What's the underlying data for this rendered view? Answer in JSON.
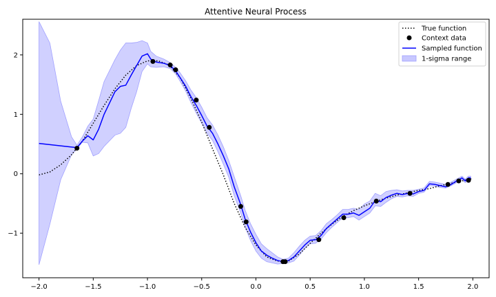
{
  "chart_data": {
    "type": "line",
    "title": "Attentive Neural Process",
    "xlim": [
      -2.15,
      2.15
    ],
    "ylim": [
      -1.75,
      2.6
    ],
    "xticks": [
      -2.0,
      -1.5,
      -1.0,
      -0.5,
      0.0,
      0.5,
      1.0,
      1.5,
      2.0
    ],
    "xtick_labels": [
      "−2.0",
      "−1.5",
      "−1.0",
      "−0.5",
      "0.0",
      "0.5",
      "1.0",
      "1.5",
      "2.0"
    ],
    "yticks": [
      -1,
      0,
      1,
      2
    ],
    "ytick_labels": [
      "−1",
      "0",
      "1",
      "2"
    ],
    "legend": {
      "placement": "top-right",
      "entries": [
        "True function",
        "Context data",
        "Sampled function",
        "1-sigma range"
      ]
    },
    "colors": {
      "true_function": "#000000",
      "context": "#000000",
      "sampled": "#0000ff",
      "band": "#c8c8ff",
      "band_edge": "#a0a0ff"
    },
    "true_function": {
      "x": [
        -2.0,
        -1.9,
        -1.8,
        -1.7,
        -1.6,
        -1.5,
        -1.4,
        -1.3,
        -1.2,
        -1.1,
        -1.0,
        -0.9,
        -0.8,
        -0.7,
        -0.6,
        -0.5,
        -0.4,
        -0.3,
        -0.2,
        -0.1,
        0.0,
        0.1,
        0.2,
        0.3,
        0.4,
        0.5,
        0.6,
        0.7,
        0.8,
        0.9,
        1.0,
        1.1,
        1.2,
        1.3,
        1.4,
        1.5,
        1.6,
        1.7,
        1.8,
        1.9,
        2.0
      ],
      "y": [
        -0.02,
        0.03,
        0.15,
        0.32,
        0.55,
        0.85,
        1.15,
        1.43,
        1.66,
        1.82,
        1.9,
        1.9,
        1.83,
        1.62,
        1.27,
        0.87,
        0.42,
        -0.02,
        -0.5,
        -0.9,
        -1.2,
        -1.4,
        -1.47,
        -1.47,
        -1.35,
        -1.17,
        -1.0,
        -0.85,
        -0.72,
        -0.62,
        -0.54,
        -0.47,
        -0.41,
        -0.36,
        -0.32,
        -0.28,
        -0.25,
        -0.2,
        -0.16,
        -0.12,
        -0.08
      ]
    },
    "context_points": {
      "x": [
        -1.65,
        -0.95,
        -0.79,
        -0.74,
        -0.55,
        -0.43,
        -0.14,
        -0.09,
        0.25,
        0.27,
        0.58,
        0.81,
        1.11,
        1.42,
        1.77,
        1.87,
        1.96
      ],
      "y": [
        0.43,
        1.89,
        1.83,
        1.75,
        1.24,
        0.78,
        -0.55,
        -0.81,
        -1.48,
        -1.48,
        -1.11,
        -0.74,
        -0.46,
        -0.33,
        -0.18,
        -0.12,
        -0.11
      ]
    },
    "sampled_function": {
      "x": [
        -2.0,
        -1.9,
        -1.8,
        -1.7,
        -1.65,
        -1.6,
        -1.55,
        -1.5,
        -1.45,
        -1.4,
        -1.3,
        -1.25,
        -1.2,
        -1.15,
        -1.1,
        -1.05,
        -1.0,
        -0.97,
        -0.92,
        -0.85,
        -0.79,
        -0.74,
        -0.7,
        -0.65,
        -0.6,
        -0.55,
        -0.5,
        -0.45,
        -0.4,
        -0.35,
        -0.3,
        -0.25,
        -0.2,
        -0.14,
        -0.1,
        -0.05,
        0.0,
        0.05,
        0.1,
        0.15,
        0.2,
        0.25,
        0.3,
        0.35,
        0.4,
        0.45,
        0.5,
        0.55,
        0.6,
        0.65,
        0.7,
        0.75,
        0.8,
        0.85,
        0.9,
        0.95,
        1.0,
        1.05,
        1.1,
        1.15,
        1.2,
        1.25,
        1.3,
        1.35,
        1.4,
        1.45,
        1.5,
        1.55,
        1.6,
        1.65,
        1.7,
        1.75,
        1.8,
        1.85,
        1.9,
        1.93,
        1.96,
        1.98
      ],
      "y": [
        0.51,
        0.49,
        0.47,
        0.45,
        0.44,
        0.55,
        0.64,
        0.57,
        0.75,
        1.0,
        1.38,
        1.47,
        1.49,
        1.66,
        1.82,
        1.98,
        2.02,
        1.93,
        1.88,
        1.86,
        1.82,
        1.73,
        1.62,
        1.48,
        1.3,
        1.15,
        0.98,
        0.8,
        0.68,
        0.5,
        0.3,
        0.08,
        -0.22,
        -0.52,
        -0.76,
        -0.98,
        -1.16,
        -1.3,
        -1.37,
        -1.42,
        -1.46,
        -1.48,
        -1.46,
        -1.4,
        -1.3,
        -1.2,
        -1.12,
        -1.11,
        -1.04,
        -0.92,
        -0.84,
        -0.76,
        -0.68,
        -0.68,
        -0.66,
        -0.7,
        -0.64,
        -0.58,
        -0.45,
        -0.47,
        -0.4,
        -0.36,
        -0.33,
        -0.35,
        -0.33,
        -0.34,
        -0.3,
        -0.28,
        -0.17,
        -0.18,
        -0.2,
        -0.22,
        -0.18,
        -0.12,
        -0.07,
        -0.12,
        -0.07,
        -0.07
      ]
    },
    "band_lower": [
      -1.53,
      -0.85,
      -0.1,
      0.32,
      0.42,
      0.53,
      0.52,
      0.3,
      0.34,
      0.46,
      0.65,
      0.68,
      0.78,
      1.1,
      1.38,
      1.72,
      1.85,
      1.8,
      1.79,
      1.8,
      1.77,
      1.68,
      1.56,
      1.4,
      1.2,
      1.02,
      0.85,
      0.68,
      0.56,
      0.37,
      0.16,
      -0.06,
      -0.37,
      -0.66,
      -0.9,
      -1.12,
      -1.3,
      -1.42,
      -1.48,
      -1.5,
      -1.52,
      -1.51,
      -1.5,
      -1.47,
      -1.37,
      -1.26,
      -1.18,
      -1.17,
      -1.1,
      -0.99,
      -0.9,
      -0.82,
      -0.74,
      -0.74,
      -0.72,
      -0.78,
      -0.72,
      -0.66,
      -0.54,
      -0.55,
      -0.48,
      -0.42,
      -0.38,
      -0.39,
      -0.37,
      -0.38,
      -0.33,
      -0.31,
      -0.2,
      -0.21,
      -0.23,
      -0.24,
      -0.2,
      -0.15,
      -0.1,
      -0.15,
      -0.1,
      -0.1
    ],
    "band_upper": [
      2.56,
      2.2,
      1.22,
      0.62,
      0.48,
      0.62,
      0.8,
      0.92,
      1.23,
      1.55,
      1.92,
      2.08,
      2.2,
      2.2,
      2.21,
      2.24,
      2.2,
      2.06,
      1.98,
      1.93,
      1.87,
      1.79,
      1.7,
      1.57,
      1.41,
      1.28,
      1.12,
      0.94,
      0.82,
      0.65,
      0.45,
      0.22,
      -0.05,
      -0.37,
      -0.61,
      -0.84,
      -1.02,
      -1.18,
      -1.26,
      -1.33,
      -1.4,
      -1.44,
      -1.42,
      -1.33,
      -1.22,
      -1.12,
      -1.05,
      -1.04,
      -0.96,
      -0.84,
      -0.77,
      -0.69,
      -0.6,
      -0.6,
      -0.58,
      -0.6,
      -0.51,
      -0.46,
      -0.33,
      -0.37,
      -0.3,
      -0.28,
      -0.27,
      -0.29,
      -0.28,
      -0.28,
      -0.26,
      -0.24,
      -0.13,
      -0.14,
      -0.16,
      -0.18,
      -0.14,
      -0.09,
      -0.04,
      -0.09,
      -0.04,
      -0.04
    ]
  }
}
